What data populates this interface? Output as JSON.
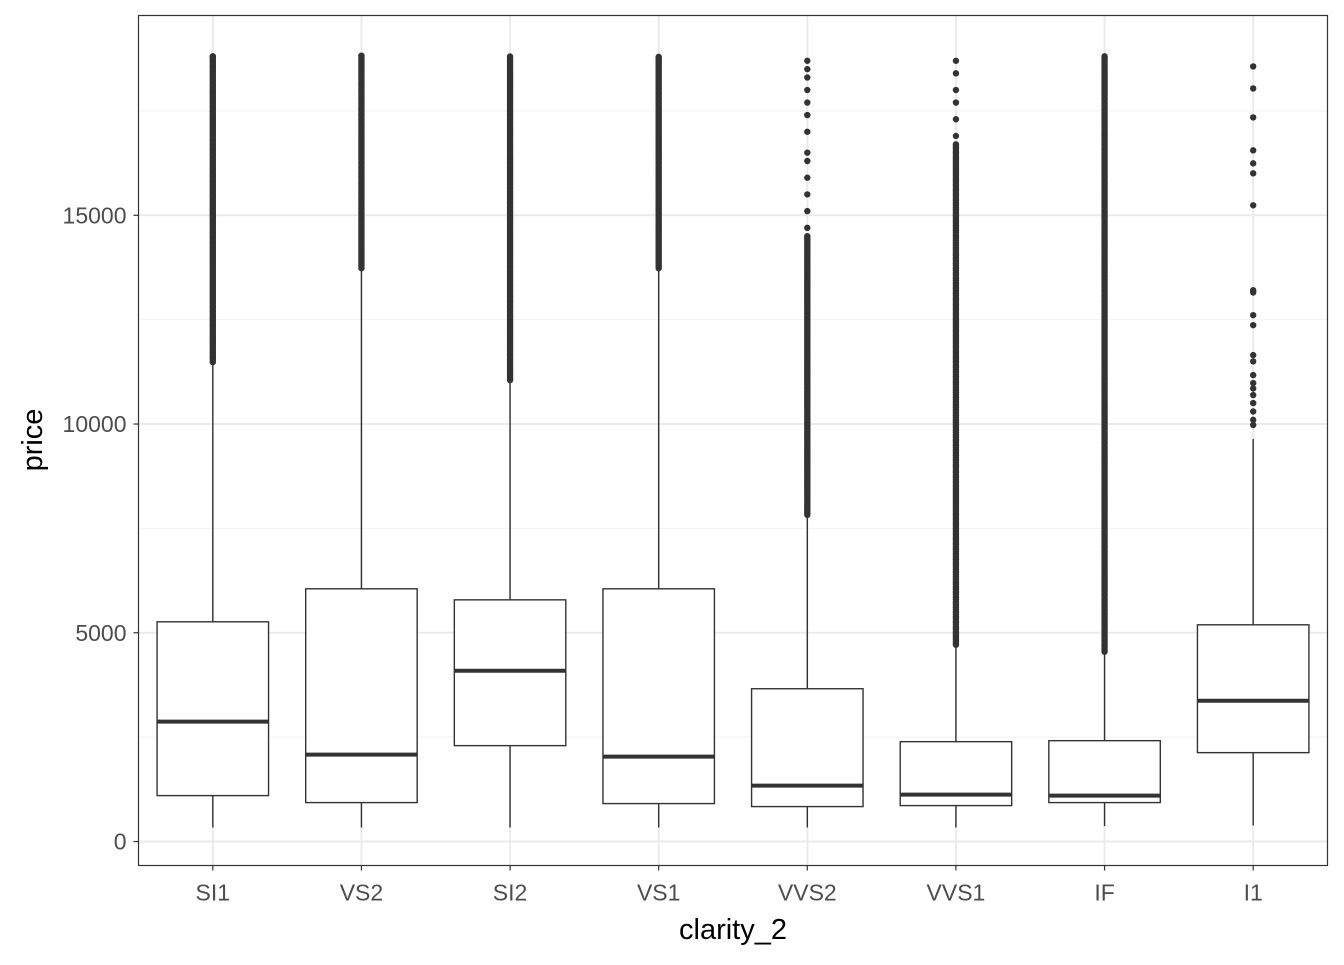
{
  "chart_data": {
    "type": "boxplot",
    "xlabel": "clarity_2",
    "ylabel": "price",
    "ylim": [
      -574,
      19785
    ],
    "yticks": [
      0,
      5000,
      10000,
      15000
    ],
    "ytick_labels": [
      "0",
      "5000",
      "10000",
      "15000"
    ],
    "grid": true,
    "categories": [
      "SI1",
      "VS2",
      "SI2",
      "VS1",
      "VVS2",
      "VVS1",
      "IF",
      "I1"
    ],
    "boxes": [
      {
        "lower": 335,
        "q1": 1100,
        "median": 2871,
        "q3": 5263,
        "upper": 11483,
        "outliers_dense": [
          11483,
          18806
        ],
        "outliers": []
      },
      {
        "lower": 335,
        "q1": 933,
        "median": 2081,
        "q3": 6053,
        "upper": 13732,
        "outliers_dense": [
          13732,
          18823
        ],
        "outliers": []
      },
      {
        "lower": 335,
        "q1": 2297,
        "median": 4091,
        "q3": 5789,
        "upper": 11053,
        "outliers_dense": [
          11053,
          18804
        ],
        "outliers": []
      },
      {
        "lower": 335,
        "q1": 909,
        "median": 2033,
        "q3": 6053,
        "upper": 13732,
        "outliers_dense": [
          13732,
          18795
        ],
        "outliers": []
      },
      {
        "lower": 336,
        "q1": 837,
        "median": 1340,
        "q3": 3660,
        "upper": 7823,
        "outliers_dense": [
          7823,
          14500
        ],
        "outliers": [
          14700,
          15100,
          15500,
          15900,
          16300,
          16500,
          17000,
          17400,
          17700,
          18000,
          18300,
          18500,
          18700
        ]
      },
      {
        "lower": 336,
        "q1": 861,
        "median": 1124,
        "q3": 2392,
        "upper": 4713,
        "outliers_dense": [
          4713,
          16700
        ],
        "outliers": [
          16900,
          17300,
          17700,
          18000,
          18400,
          18700
        ]
      },
      {
        "lower": 369,
        "q1": 933,
        "median": 1100,
        "q3": 2416,
        "upper": 4545,
        "outliers_dense": [
          4545,
          18806
        ],
        "outliers": []
      },
      {
        "lower": 383,
        "q1": 2129,
        "median": 3373,
        "q3": 5191,
        "upper": 9641,
        "outliers_dense": [],
        "outliers": [
          9976,
          10100,
          10300,
          10502,
          10694,
          10850,
          10981,
          11172,
          11500,
          11651,
          12368,
          12608,
          13150,
          13205,
          15239,
          16005,
          16244,
          16555,
          17344,
          18038,
          18565
        ]
      }
    ]
  }
}
